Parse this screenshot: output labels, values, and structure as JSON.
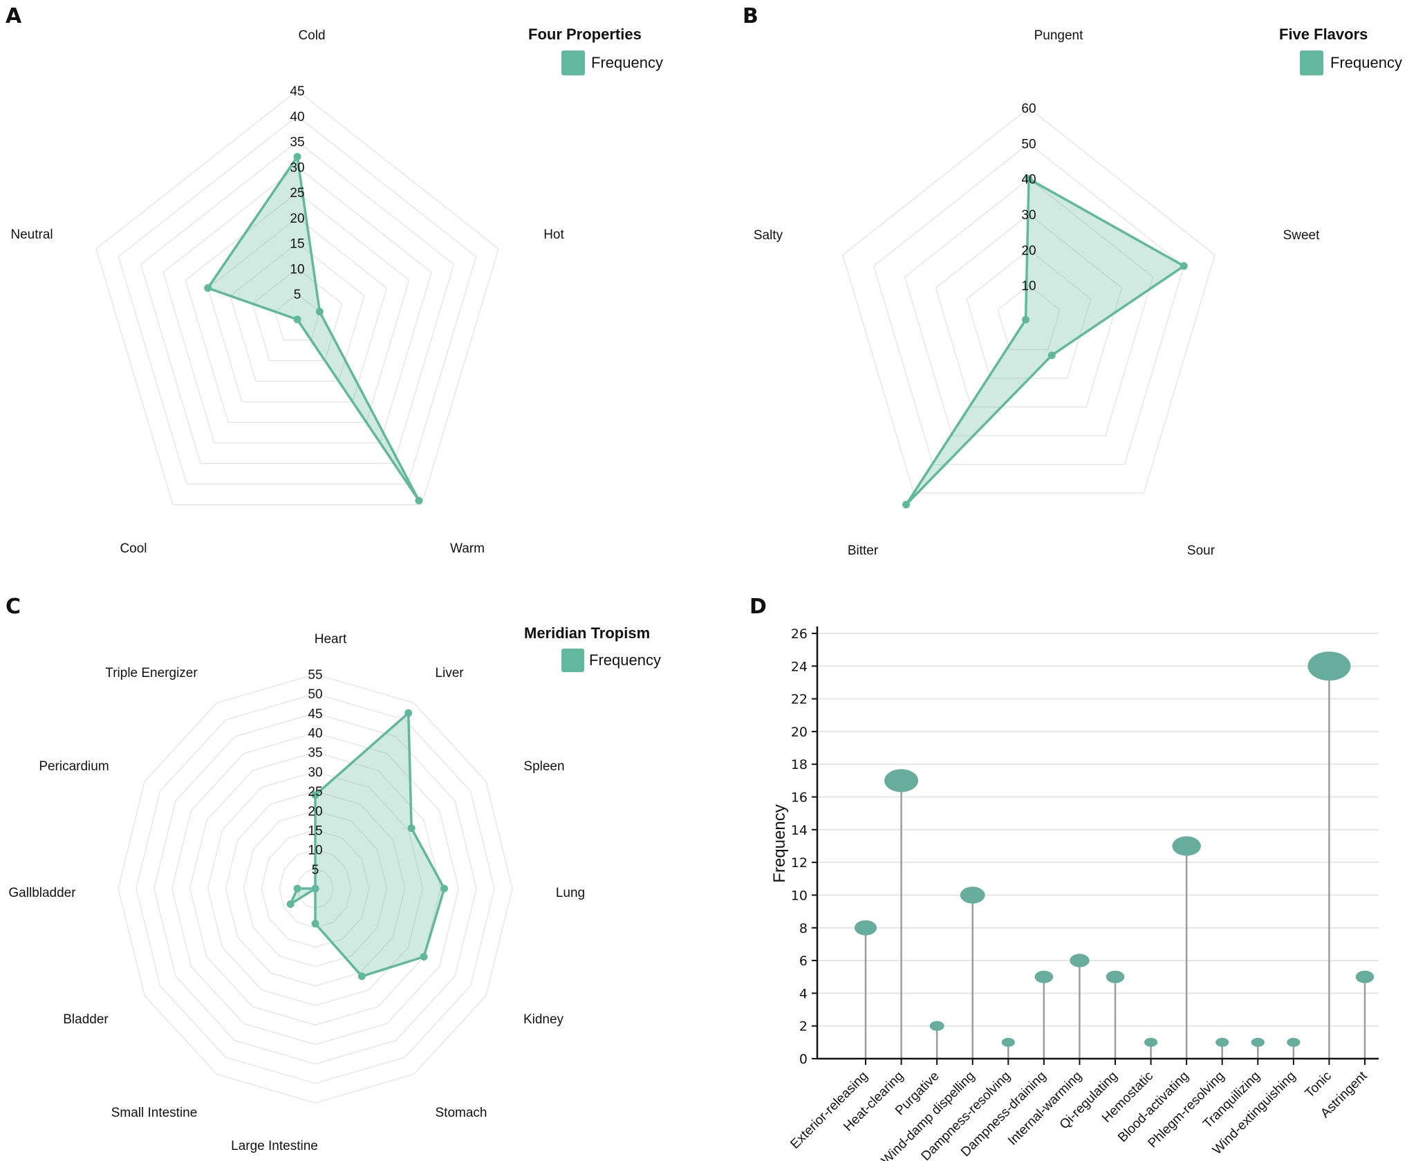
{
  "chart_data": [
    {
      "panel": "A",
      "type": "radar",
      "title": "Four Properties",
      "legend": {
        "title": "Four Properties",
        "entries": [
          "Frequency"
        ],
        "placement": "top-right"
      },
      "categories": [
        "Cold",
        "Hot",
        "Warm",
        "Cool",
        "Neutral"
      ],
      "series": [
        {
          "name": "Frequency",
          "values": [
            32,
            5,
            44,
            0,
            20
          ]
        }
      ],
      "rlim": [
        0,
        45
      ],
      "rticks": [
        5,
        10,
        15,
        20,
        25,
        30,
        35,
        40,
        45
      ],
      "color": "#62b89c"
    },
    {
      "panel": "B",
      "type": "radar",
      "title": "Five Flavors",
      "legend": {
        "title": "Five Flavors",
        "entries": [
          "Frequency"
        ],
        "placement": "top-right"
      },
      "categories": [
        "Pungent",
        "Sweet",
        "Sour",
        "Bitter",
        "Salty"
      ],
      "series": [
        {
          "name": "Frequency",
          "values": [
            40,
            50,
            12,
            64,
            1
          ]
        }
      ],
      "rlim": [
        0,
        60
      ],
      "rticks": [
        10,
        20,
        30,
        40,
        50,
        60
      ],
      "color": "#62b89c"
    },
    {
      "panel": "C",
      "type": "radar",
      "title": "Meridian Tropism",
      "legend": {
        "title": "Meridian Tropism",
        "entries": [
          "Frequency"
        ],
        "placement": "top-right"
      },
      "categories": [
        "Heart",
        "Liver",
        "Spleen",
        "Lung",
        "Kidney",
        "Stomach",
        "Large Intestine",
        "Small Intestine",
        "Bladder",
        "Gallbladder",
        "Pericardium",
        "Triple Energizer"
      ],
      "series": [
        {
          "name": "Frequency",
          "values": [
            24,
            52,
            31,
            36,
            35,
            26,
            9,
            0,
            8,
            5,
            0,
            0
          ]
        }
      ],
      "rlim": [
        0,
        55
      ],
      "rticks": [
        5,
        10,
        15,
        20,
        25,
        30,
        35,
        40,
        45,
        50,
        55
      ],
      "color": "#62b89c"
    },
    {
      "panel": "D",
      "type": "lollipop",
      "title": "",
      "xlabel": "",
      "ylabel": "Frequency",
      "categories": [
        "Exterior-releasing",
        "Heat-clearing",
        "Purgative",
        "Wind-damp dispelling",
        "Dampness-resolving",
        "Dampness-draining",
        "Internal-warming",
        "Qi-regulating",
        "Hemostatic",
        "Blood-activating",
        "Phlegm-resolving",
        "Tranquilizing",
        "Wind-extinguishing",
        "Tonic",
        "Astringent"
      ],
      "values": [
        8,
        17,
        2,
        10,
        1,
        5,
        6,
        5,
        1,
        13,
        1,
        1,
        1,
        24,
        5
      ],
      "ylim": [
        0,
        26
      ],
      "yticks": [
        0,
        2,
        4,
        6,
        8,
        10,
        12,
        14,
        16,
        18,
        20,
        22,
        24,
        26
      ],
      "grid": true,
      "color": "#67ad9e"
    }
  ],
  "panel_letters": [
    "A",
    "B",
    "C",
    "D"
  ]
}
